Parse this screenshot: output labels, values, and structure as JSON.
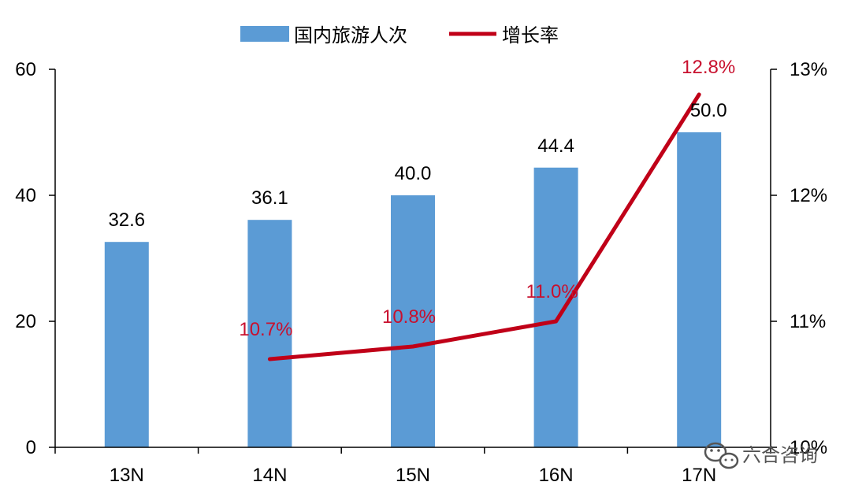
{
  "chart_data": {
    "type": "bar",
    "categories": [
      "13N",
      "14N",
      "15N",
      "16N",
      "17N"
    ],
    "series": [
      {
        "name": "国内旅游人次",
        "type": "bar",
        "axis": "left",
        "values": [
          32.6,
          36.1,
          40.0,
          44.4,
          50.0
        ],
        "labels": [
          "32.6",
          "36.1",
          "40.0",
          "44.4",
          "50.0"
        ]
      },
      {
        "name": "增长率",
        "type": "line",
        "axis": "right",
        "values": [
          null,
          10.7,
          10.8,
          11.0,
          12.8
        ],
        "labels": [
          "",
          "10.7%",
          "10.8%",
          "11.0%",
          "12.8%"
        ]
      }
    ],
    "y_left": {
      "min": 0,
      "max": 60,
      "ticks": [
        0,
        20,
        40,
        60
      ],
      "tick_labels": [
        "0",
        "20",
        "40",
        "60"
      ]
    },
    "y_right": {
      "min": 10,
      "max": 13,
      "ticks": [
        10,
        11,
        12,
        13
      ],
      "tick_labels": [
        "10%",
        "11%",
        "12%",
        "13%"
      ]
    },
    "grid": false,
    "legend_position": "top-center",
    "colors": {
      "bar": "#5b9bd5",
      "line": "#c00018",
      "rate_label": "#c8102e",
      "axis": "#000000"
    }
  },
  "watermark": {
    "text": "六合咨询",
    "icon": "wechat-icon"
  }
}
